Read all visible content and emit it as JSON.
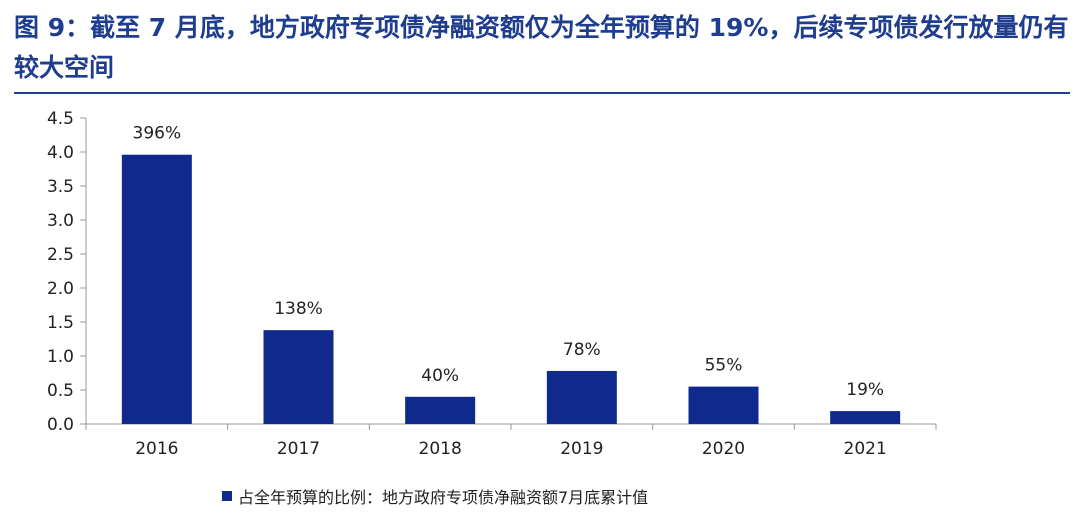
{
  "title": "图 9：截至 7 月底，地方政府专项债净融资额仅为全年预算的 19%，后续专项债发行放量仍有较大空间",
  "colors": {
    "title": "#1f3d8f",
    "bar": "#0f2a8c",
    "axis": "#999999"
  },
  "chart_data": {
    "type": "bar",
    "categories": [
      "2016",
      "2017",
      "2018",
      "2019",
      "2020",
      "2021"
    ],
    "values": [
      3.96,
      1.38,
      0.4,
      0.78,
      0.55,
      0.19
    ],
    "data_labels": [
      "396%",
      "138%",
      "40%",
      "78%",
      "55%",
      "19%"
    ],
    "ylim": [
      0,
      4.5
    ],
    "yticks": [
      "0.0",
      "0.5",
      "1.0",
      "1.5",
      "2.0",
      "2.5",
      "3.0",
      "3.5",
      "4.0",
      "4.5"
    ],
    "grid": false,
    "legend_position": "bottom-left",
    "series": [
      {
        "name": "占全年预算的比例：地方政府专项债净融资额7月底累计值",
        "values": [
          3.96,
          1.38,
          0.4,
          0.78,
          0.55,
          0.19
        ]
      }
    ]
  }
}
